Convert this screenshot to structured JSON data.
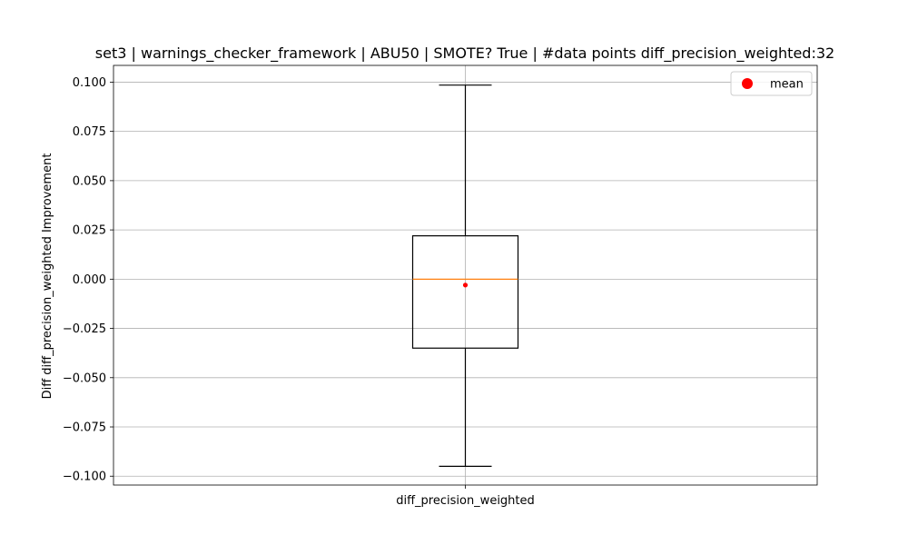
{
  "chart_data": {
    "type": "box",
    "title": "set3 | warnings_checker_framework | ABU50 | SMOTE? True | #data points diff_precision_weighted:32",
    "xlabel": "",
    "ylabel": "Diff diff_precision_weighted Improvement",
    "categories": [
      "diff_precision_weighted"
    ],
    "ylim": [
      -0.1045,
      0.1085
    ],
    "yticks": [
      0.1,
      0.075,
      0.05,
      0.025,
      0.0,
      -0.025,
      -0.05,
      -0.075,
      -0.1
    ],
    "ytick_labels": [
      "0.100",
      "0.075",
      "0.050",
      "0.025",
      "0.000",
      "−0.025",
      "−0.050",
      "−0.075",
      "−0.100"
    ],
    "grid": true,
    "box": {
      "whisker_low": -0.095,
      "q1": -0.035,
      "median": 0.0,
      "q3": 0.022,
      "whisker_high": 0.0985,
      "mean": -0.003
    },
    "legend": {
      "placement": "top-right",
      "entries": [
        {
          "label": "mean",
          "color": "#ff0000",
          "marker": "circle"
        }
      ]
    },
    "colors": {
      "box": "#000000",
      "median": "#ff7f0e",
      "mean": "#ff0000",
      "grid": "#b0b0b0"
    }
  }
}
